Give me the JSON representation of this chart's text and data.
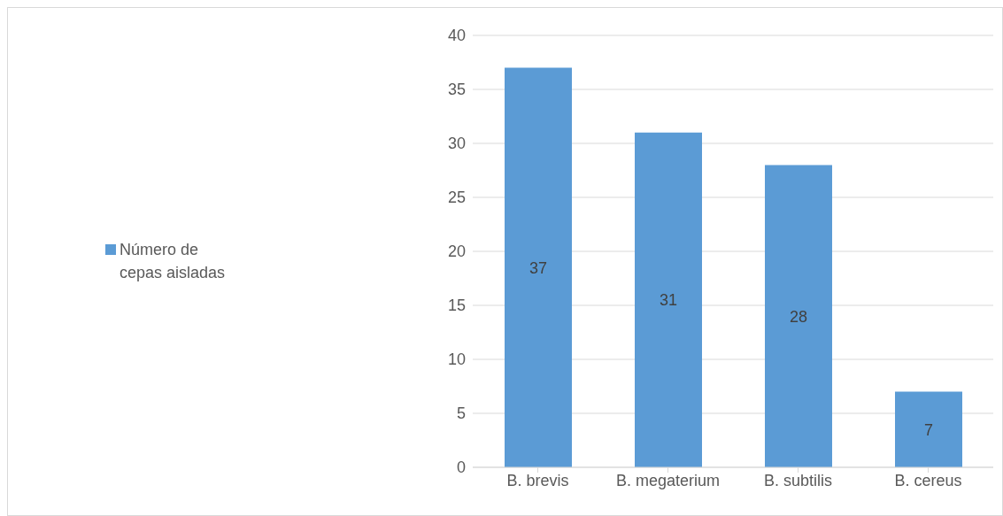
{
  "chart_data": {
    "type": "bar",
    "categories": [
      "B. brevis",
      "B. megaterium",
      "B. subtilis",
      "B. cereus"
    ],
    "series": [
      {
        "name": "Número de cepas aisladas",
        "color": "#5b9bd5",
        "values": [
          37,
          31,
          28,
          7
        ]
      }
    ],
    "ylim": [
      0,
      40
    ],
    "yticks": [
      0,
      5,
      10,
      15,
      20,
      25,
      30,
      35,
      40
    ],
    "grid": "y",
    "legend": "left",
    "data_labels": true
  }
}
